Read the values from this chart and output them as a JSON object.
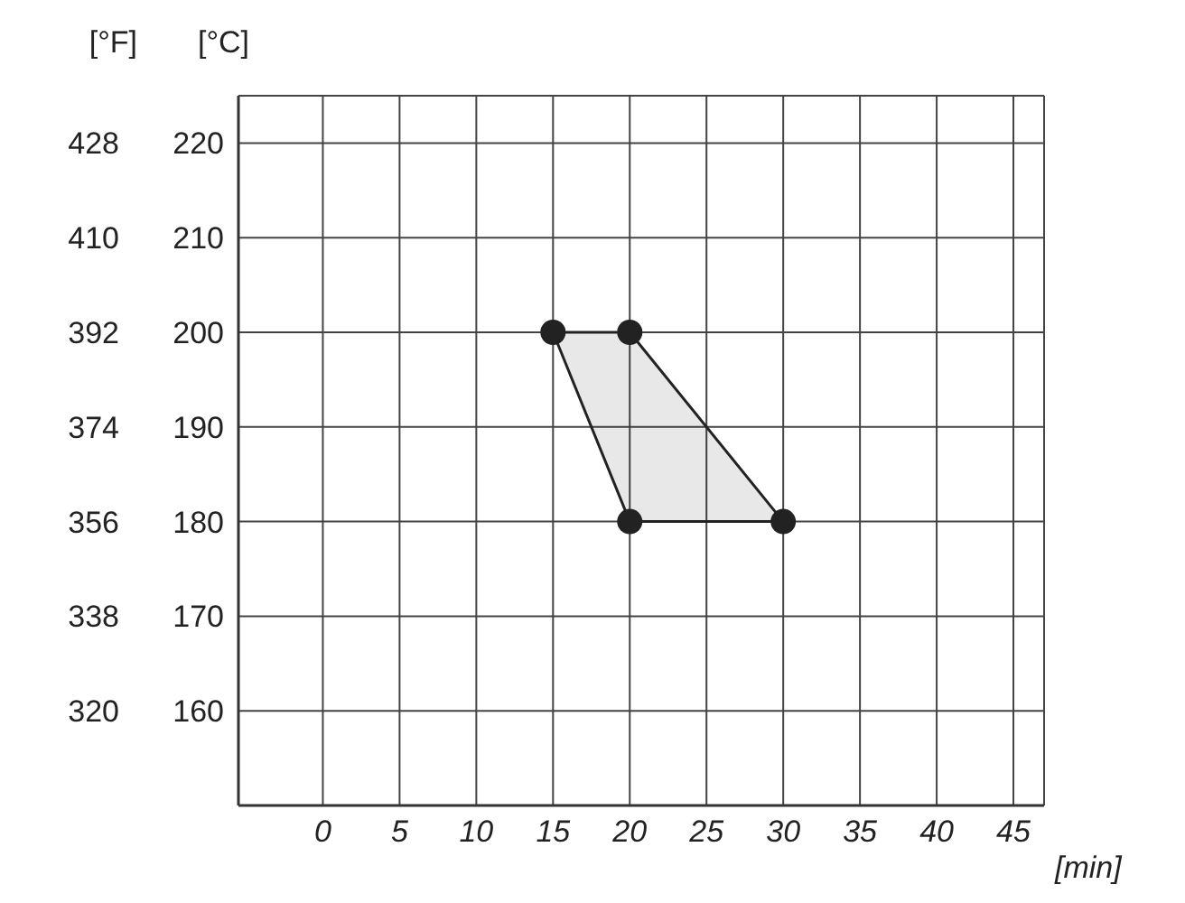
{
  "chart_data": {
    "type": "area",
    "xlabel": "[min]",
    "ylabel": "[°C]",
    "y2label": "[°F]",
    "xlim": [
      -5.5,
      47
    ],
    "xticks": [
      0,
      5,
      10,
      15,
      20,
      25,
      30,
      35,
      40,
      45
    ],
    "ylim": [
      150,
      225
    ],
    "yticks": [
      160,
      170,
      180,
      190,
      200,
      210,
      220
    ],
    "y2lim": [
      302,
      437
    ],
    "y2ticks": [
      320,
      338,
      356,
      374,
      392,
      410,
      428
    ],
    "grid": true,
    "marker": "circle",
    "series": [
      {
        "type": "area",
        "color": "#222222",
        "x": [
          15,
          20,
          30,
          20
        ],
        "values": [
          200,
          200,
          180,
          180
        ]
      }
    ]
  }
}
